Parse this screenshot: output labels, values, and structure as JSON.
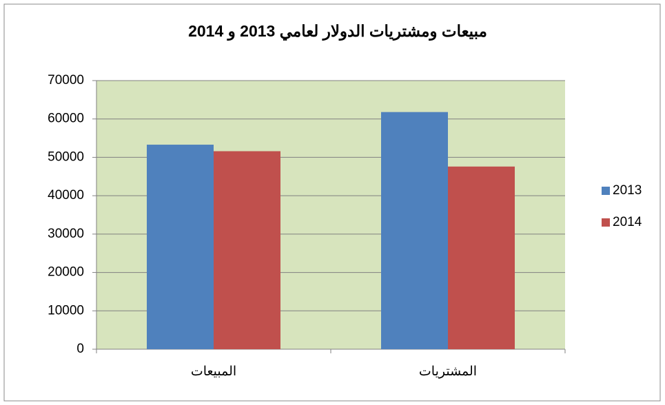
{
  "chart_data": {
    "type": "bar",
    "title": "مبيعات ومشتريات الدولار لعامي 2013 و 2014",
    "categories": [
      "المبيعات",
      "المشتريات"
    ],
    "series": [
      {
        "name": "2013",
        "color": "#4f81bd",
        "values": [
          53300,
          61800
        ]
      },
      {
        "name": "2014",
        "color": "#c0504d",
        "values": [
          51600,
          47600
        ]
      }
    ],
    "ylim": [
      0,
      70000
    ],
    "yticks": [
      0,
      10000,
      20000,
      30000,
      40000,
      50000,
      60000,
      70000
    ],
    "grid": true,
    "legend": "right",
    "plot_background": "#d7e4bd"
  }
}
